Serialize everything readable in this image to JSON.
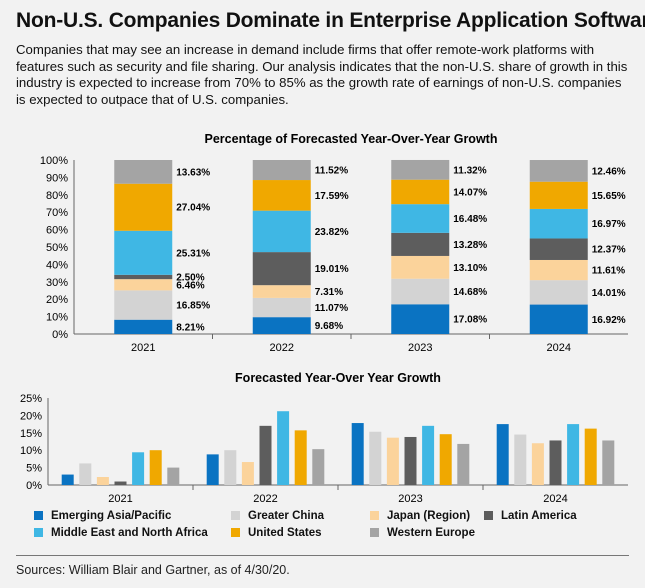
{
  "title": "Non-U.S. Companies Dominate in Enterprise Application Software",
  "description": "Companies that may see an increase in demand include firms that offer remote-work platforms with features such as security and file sharing. Our analysis indicates that the non-U.S. share of growth in this industry is expected to increase from 70% to 85% as the growth rate of earnings of non-U.S. companies is expected to outpace that of U.S. companies.",
  "source": "Sources: William Blair and Gartner, as of 4/30/20.",
  "colors": {
    "Emerging Asia/Pacific": "#0a73c2",
    "Greater China": "#d3d3d3",
    "Japan (Region)": "#fbd39b",
    "Latin America": "#5d5d5d",
    "Middle East and North Africa": "#3fb7e4",
    "United States": "#f0a800",
    "Western Europe": "#a4a4a4"
  },
  "legend": [
    "Emerging Asia/Pacific",
    "Greater China",
    "Japan (Region)",
    "Latin America",
    "Middle East and North Africa",
    "United States",
    "Western Europe"
  ],
  "chart_data": [
    {
      "type": "bar",
      "stacked": true,
      "title": "Percentage of Forecasted Year-Over-Year Growth",
      "categories": [
        "2021",
        "2022",
        "2023",
        "2024"
      ],
      "ylim": [
        0,
        100
      ],
      "yticks": [
        0,
        10,
        20,
        30,
        40,
        50,
        60,
        70,
        80,
        90,
        100
      ],
      "ytick_format": "percent",
      "grid": false,
      "series": [
        {
          "name": "Emerging Asia/Pacific",
          "values": [
            8.21,
            9.68,
            17.08,
            16.92
          ],
          "labels": [
            "8.21%",
            "9.68%",
            "17.08%",
            "16.92%"
          ]
        },
        {
          "name": "Greater China",
          "values": [
            16.85,
            11.07,
            14.68,
            14.01
          ],
          "labels": [
            "16.85%",
            "11.07%",
            "14.68%",
            "14.01%"
          ]
        },
        {
          "name": "Japan (Region)",
          "values": [
            6.46,
            7.31,
            13.1,
            11.61
          ],
          "labels": [
            "6.46%",
            "7.31%",
            "13.10%",
            "11.61%"
          ]
        },
        {
          "name": "Latin America",
          "values": [
            2.5,
            19.01,
            13.28,
            12.37
          ],
          "labels": [
            "2.50%",
            "19.01%",
            "13.28%",
            "12.37%"
          ]
        },
        {
          "name": "Middle East and North Africa",
          "values": [
            25.31,
            23.82,
            16.48,
            16.97
          ],
          "labels": [
            "25.31%",
            "23.82%",
            "16.48%",
            "16.97%"
          ]
        },
        {
          "name": "United States",
          "values": [
            27.04,
            17.59,
            14.07,
            15.65
          ],
          "labels": [
            "27.04%",
            "17.59%",
            "14.07%",
            "15.65%"
          ]
        },
        {
          "name": "Western Europe",
          "values": [
            13.63,
            11.52,
            11.32,
            12.46
          ],
          "labels": [
            "13.63%",
            "11.52%",
            "11.32%",
            "12.46%"
          ]
        }
      ]
    },
    {
      "type": "bar",
      "stacked": false,
      "title": "Forecasted Year-Over Year Growth",
      "categories": [
        "2021",
        "2022",
        "2023",
        "2024"
      ],
      "ylim": [
        0,
        25
      ],
      "yticks": [
        0,
        5,
        10,
        15,
        20,
        25
      ],
      "ytick_format": "percent",
      "grid": false,
      "series": [
        {
          "name": "Emerging Asia/Pacific",
          "values": [
            3.0,
            8.8,
            17.8,
            17.5
          ]
        },
        {
          "name": "Greater China",
          "values": [
            6.2,
            10.0,
            15.3,
            14.5
          ]
        },
        {
          "name": "Japan (Region)",
          "values": [
            2.3,
            6.6,
            13.6,
            12.0
          ]
        },
        {
          "name": "Latin America",
          "values": [
            1.0,
            17.0,
            13.8,
            12.8
          ]
        },
        {
          "name": "Middle East and North Africa",
          "values": [
            9.4,
            21.2,
            17.0,
            17.5
          ]
        },
        {
          "name": "United States",
          "values": [
            10.0,
            15.7,
            14.6,
            16.2
          ]
        },
        {
          "name": "Western Europe",
          "values": [
            5.0,
            10.3,
            11.8,
            12.8
          ]
        }
      ]
    }
  ]
}
